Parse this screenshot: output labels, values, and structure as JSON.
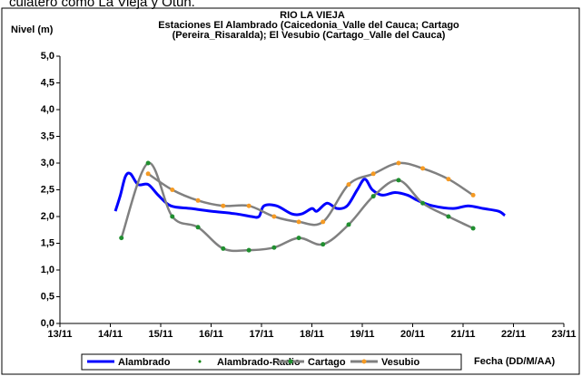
{
  "header_text": "culatero como La Vieja y Otún.",
  "chart_data": {
    "type": "line",
    "title": [
      "RIO LA VIEJA",
      "Estaciones El Alambrado (Caicedonia_Valle del Cauca; Cartago",
      "(Pereira_Risaralda);  El Vesubio (Cartago_Valle del Cauca)"
    ],
    "y_label": "Nivel (m)",
    "x_label": "Fecha (DD/M/AA)",
    "xlim": [
      13,
      23
    ],
    "xticks": [
      {
        "value": 13,
        "label": "13/11"
      },
      {
        "value": 14,
        "label": "14/11"
      },
      {
        "value": 15,
        "label": "15/11"
      },
      {
        "value": 16,
        "label": "16/11"
      },
      {
        "value": 17,
        "label": "17/11"
      },
      {
        "value": 18,
        "label": "18/11"
      },
      {
        "value": 19,
        "label": "19/11"
      },
      {
        "value": 20,
        "label": "20/11"
      },
      {
        "value": 21,
        "label": "21/11"
      },
      {
        "value": 22,
        "label": "22/11"
      },
      {
        "value": 23,
        "label": "23/11"
      }
    ],
    "ylim": [
      0,
      5
    ],
    "yticks": [
      {
        "value": 0,
        "label": "0,0"
      },
      {
        "value": 0.5,
        "label": "0,5"
      },
      {
        "value": 1,
        "label": "1,0"
      },
      {
        "value": 1.5,
        "label": "1,5"
      },
      {
        "value": 2,
        "label": "2,0"
      },
      {
        "value": 2.5,
        "label": "2,5"
      },
      {
        "value": 3,
        "label": "3,0"
      },
      {
        "value": 3.5,
        "label": "3,5"
      },
      {
        "value": 4,
        "label": "4,0"
      },
      {
        "value": 4.5,
        "label": "4,5"
      },
      {
        "value": 5,
        "label": "5,0"
      }
    ],
    "grid": false,
    "legend": "bottom",
    "series": [
      {
        "name": "Alambrado",
        "color": "#0000ff",
        "line": true,
        "marker_color": null,
        "x": [
          14.1,
          14.2,
          14.3,
          14.4,
          14.55,
          14.75,
          14.95,
          15.2,
          15.6,
          16.0,
          16.5,
          16.8,
          16.95,
          17.05,
          17.3,
          17.6,
          17.8,
          18.0,
          18.1,
          18.3,
          18.5,
          18.7,
          18.9,
          19.05,
          19.2,
          19.4,
          19.65,
          19.9,
          20.1,
          20.4,
          20.8,
          21.1,
          21.4,
          21.7,
          21.83
        ],
        "values": [
          2.1,
          2.4,
          2.75,
          2.8,
          2.6,
          2.6,
          2.4,
          2.2,
          2.15,
          2.1,
          2.05,
          2.0,
          2.0,
          2.2,
          2.2,
          2.05,
          2.05,
          2.15,
          2.1,
          2.25,
          2.15,
          2.2,
          2.5,
          2.7,
          2.5,
          2.4,
          2.45,
          2.4,
          2.3,
          2.2,
          2.15,
          2.2,
          2.15,
          2.1,
          2.02
        ]
      },
      {
        "name": "Alambrado-Radio",
        "color": "#008000",
        "line": false,
        "marker_color": "#008000",
        "x": [],
        "values": []
      },
      {
        "name": "Cartago",
        "color": "#808080",
        "line": true,
        "marker_color": "#1f8f2f",
        "x": [
          14.22,
          14.75,
          15.23,
          15.74,
          16.24,
          16.75,
          17.25,
          17.74,
          18.22,
          18.73,
          19.22,
          19.72,
          20.2,
          20.71,
          21.2
        ],
        "values": [
          1.6,
          3.0,
          2.0,
          1.8,
          1.4,
          1.37,
          1.42,
          1.6,
          1.48,
          1.85,
          2.38,
          2.68,
          2.25,
          2.0,
          1.78
        ]
      },
      {
        "name": "Vesubio",
        "color": "#808080",
        "line": true,
        "marker_color": "#f59a23",
        "x": [
          14.75,
          15.23,
          15.74,
          16.24,
          16.75,
          17.25,
          17.74,
          18.22,
          18.73,
          19.22,
          19.72,
          20.2,
          20.71,
          21.2
        ],
        "values": [
          2.8,
          2.5,
          2.3,
          2.2,
          2.2,
          2.0,
          1.9,
          1.9,
          2.6,
          2.8,
          3.0,
          2.9,
          2.7,
          2.4
        ]
      }
    ]
  }
}
